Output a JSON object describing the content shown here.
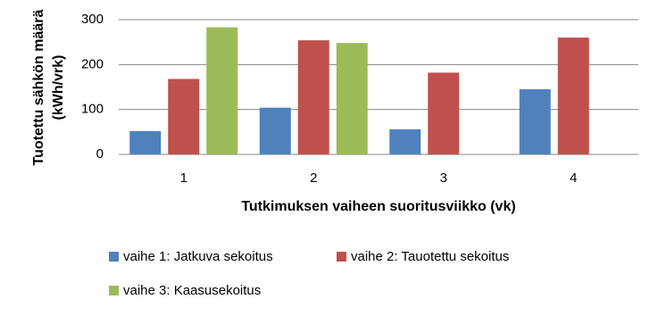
{
  "chart_data": {
    "type": "bar",
    "y_label": [
      "Tuotettu sähkön määrä",
      "(kWh/vrk)"
    ],
    "x_label": "Tutkimuksen vaiheen suoritusviikko (vk)",
    "categories": [
      "1",
      "2",
      "3",
      "4"
    ],
    "series": [
      {
        "name": "vaihe 1: Jatkuva sekoitus",
        "color": "#4f81bd",
        "values": [
          52,
          104,
          56,
          145
        ]
      },
      {
        "name": "vaihe 2: Tauotettu sekoitus",
        "color": "#c0504d",
        "values": [
          168,
          254,
          182,
          260
        ]
      },
      {
        "name": "vaihe 3: Kaasusekoitus",
        "color": "#9bbb59",
        "values": [
          283,
          248,
          null,
          null
        ]
      }
    ],
    "ylim": [
      0,
      300
    ],
    "yticks": [
      0,
      100,
      200,
      300
    ],
    "grid": true,
    "legend": "bottom"
  }
}
